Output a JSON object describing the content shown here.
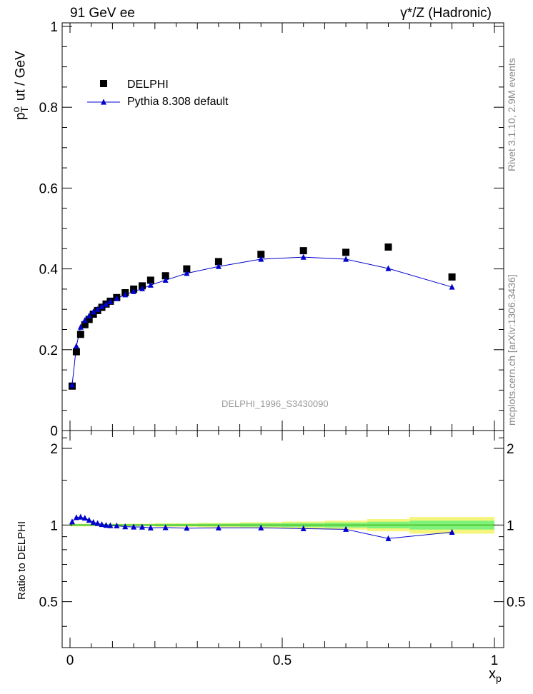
{
  "header": {
    "left": "91 GeV ee",
    "right": "γ*/Z (Hadronic)"
  },
  "side_labels": {
    "rivet": "Rivet 3.1.10, 2.9M events",
    "source": "mcplots.cern.ch [arXiv:1306.3436]"
  },
  "watermark": "DELPHI_1996_S3430090",
  "colors": {
    "data": "#000000",
    "mc": "#0000cc",
    "band_inner": "#7df27d",
    "band_outer": "#f4f57a",
    "ref_line": "#4cbb17"
  },
  "chart_data": [
    {
      "type": "scatter",
      "ylabel_main": "p",
      "ylabel_sup": "o",
      "ylabel_sub": "T",
      "ylabel_rest": "ut / GeV",
      "xlabel": "x",
      "xlabel_sub": "p",
      "xlim": [
        0,
        1
      ],
      "ylim": [
        0,
        1.0
      ],
      "yticks": [
        "0",
        "0.2",
        "0.4",
        "0.6",
        "0.8",
        "1"
      ],
      "legend_placement": "top-left",
      "series": [
        {
          "name": "DELPHI",
          "marker": "square",
          "x": [
            0.005,
            0.015,
            0.025,
            0.035,
            0.045,
            0.055,
            0.065,
            0.075,
            0.085,
            0.095,
            0.11,
            0.13,
            0.15,
            0.17,
            0.19,
            0.225,
            0.275,
            0.35,
            0.45,
            0.55,
            0.65,
            0.75,
            0.9
          ],
          "y": [
            0.11,
            0.195,
            0.238,
            0.262,
            0.275,
            0.288,
            0.297,
            0.305,
            0.313,
            0.32,
            0.329,
            0.341,
            0.35,
            0.358,
            0.372,
            0.383,
            0.4,
            0.418,
            0.436,
            0.445,
            0.441,
            0.454,
            0.38
          ]
        },
        {
          "name": "Pythia 8.308 default",
          "marker": "triangle",
          "x": [
            0.005,
            0.015,
            0.025,
            0.035,
            0.045,
            0.055,
            0.065,
            0.075,
            0.085,
            0.095,
            0.11,
            0.13,
            0.15,
            0.17,
            0.19,
            0.225,
            0.275,
            0.35,
            0.45,
            0.55,
            0.65,
            0.75,
            0.9
          ],
          "y": [
            0.113,
            0.209,
            0.256,
            0.273,
            0.284,
            0.294,
            0.3,
            0.307,
            0.313,
            0.319,
            0.327,
            0.336,
            0.344,
            0.351,
            0.36,
            0.372,
            0.389,
            0.406,
            0.424,
            0.429,
            0.424,
            0.401,
            0.355
          ]
        }
      ]
    },
    {
      "type": "scatter",
      "ylabel": "Ratio to DELPHI",
      "xlim": [
        0,
        1
      ],
      "ylim": [
        0.33,
        2.35
      ],
      "log_y": true,
      "yticks": [
        "0.5",
        "1",
        "2"
      ],
      "xticks": [
        "0",
        "0.5",
        "1"
      ],
      "series": [
        {
          "name": "Pythia 8.308 default",
          "marker": "triangle",
          "x": [
            0.005,
            0.015,
            0.025,
            0.035,
            0.045,
            0.055,
            0.065,
            0.075,
            0.085,
            0.095,
            0.11,
            0.13,
            0.15,
            0.17,
            0.19,
            0.225,
            0.275,
            0.35,
            0.45,
            0.55,
            0.65,
            0.75,
            0.9
          ],
          "y": [
            1.03,
            1.07,
            1.075,
            1.065,
            1.045,
            1.025,
            1.015,
            1.005,
            0.998,
            0.995,
            0.993,
            0.985,
            0.983,
            0.982,
            0.975,
            0.977,
            0.972,
            0.975,
            0.975,
            0.968,
            0.962,
            0.885,
            0.937
          ]
        }
      ],
      "band": {
        "x_edges": [
          0.0,
          0.1,
          0.2,
          0.3,
          0.4,
          0.5,
          0.6,
          0.7,
          0.8,
          1.0
        ],
        "inner": [
          0.008,
          0.008,
          0.01,
          0.012,
          0.015,
          0.018,
          0.022,
          0.03,
          0.04
        ],
        "outer": [
          0.012,
          0.012,
          0.016,
          0.02,
          0.026,
          0.032,
          0.04,
          0.055,
          0.075
        ]
      }
    }
  ]
}
